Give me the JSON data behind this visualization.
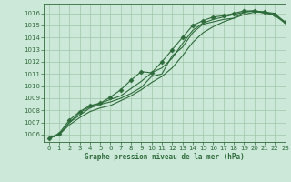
{
  "bg_color": "#cce8d8",
  "grid_color": "#a0c8a8",
  "line_color": "#2d6b3a",
  "title": "Graphe pression niveau de la mer (hPa)",
  "xlim": [
    -0.5,
    23
  ],
  "ylim": [
    1005.4,
    1016.8
  ],
  "yticks": [
    1006,
    1007,
    1008,
    1009,
    1010,
    1011,
    1012,
    1013,
    1014,
    1015,
    1016
  ],
  "xticks": [
    0,
    1,
    2,
    3,
    4,
    5,
    6,
    7,
    8,
    9,
    10,
    11,
    12,
    13,
    14,
    15,
    16,
    17,
    18,
    19,
    20,
    21,
    22,
    23
  ],
  "series": [
    [
      1005.7,
      1006.0,
      1007.0,
      1007.6,
      1008.2,
      1008.5,
      1008.7,
      1009.0,
      1009.4,
      1009.9,
      1010.8,
      1011.0,
      1012.5,
      1013.2,
      1014.4,
      1015.1,
      1015.3,
      1015.5,
      1015.6,
      1016.1,
      1016.2,
      1016.1,
      1016.0,
      1015.2
    ],
    [
      1005.7,
      1006.0,
      1007.0,
      1007.8,
      1008.3,
      1008.6,
      1008.9,
      1009.2,
      1009.8,
      1010.4,
      1011.1,
      1011.5,
      1012.3,
      1013.5,
      1014.6,
      1015.2,
      1015.5,
      1015.7,
      1015.9,
      1016.1,
      1016.2,
      1016.0,
      1015.9,
      1015.2
    ],
    [
      1005.7,
      1006.1,
      1007.2,
      1007.9,
      1008.4,
      1008.6,
      1009.1,
      1009.7,
      1010.5,
      1011.2,
      1011.1,
      1012.0,
      1013.0,
      1014.0,
      1015.0,
      1015.4,
      1015.7,
      1015.8,
      1016.0,
      1016.2,
      1016.2,
      1016.1,
      1015.9,
      1015.3
    ],
    [
      1005.7,
      1006.0,
      1006.8,
      1007.4,
      1007.9,
      1008.2,
      1008.4,
      1008.8,
      1009.2,
      1009.7,
      1010.3,
      1010.8,
      1011.5,
      1012.5,
      1013.6,
      1014.4,
      1014.9,
      1015.3,
      1015.6,
      1015.9,
      1016.1,
      1016.1,
      1015.8,
      1015.2
    ]
  ],
  "marker_series": 2,
  "marker": "D",
  "markersize": 2.5,
  "linewidth": 0.8,
  "tick_fontsize": 5.0,
  "xlabel_fontsize": 5.5
}
